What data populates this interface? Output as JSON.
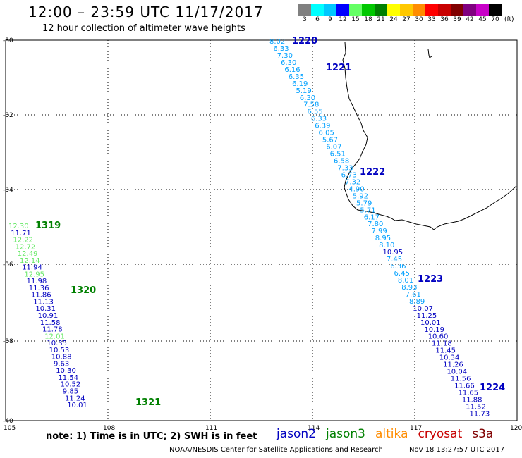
{
  "header": {
    "title": "12:00 – 23:59 UTC 11/17/2017",
    "subtitle": "12 hour collection of altimeter wave heights"
  },
  "color_scale": {
    "labels": [
      "3",
      "6",
      "9",
      "12",
      "15",
      "18",
      "21",
      "24",
      "27",
      "30",
      "33",
      "36",
      "39",
      "42",
      "45",
      "70"
    ],
    "units": "(ft)",
    "colors": [
      "#808080",
      "#00ffff",
      "#00c8ff",
      "#0000ff",
      "#64ff64",
      "#00c800",
      "#008000",
      "#ffff00",
      "#ffc800",
      "#ff8c00",
      "#ff0000",
      "#c80000",
      "#800000",
      "#800080",
      "#c800c8",
      "#000000"
    ]
  },
  "axes": {
    "lat_labels": [
      "-30",
      "-32",
      "-34",
      "-36",
      "-38",
      "-40"
    ],
    "lon_labels": [
      "105",
      "108",
      "111",
      "114",
      "117",
      "120"
    ]
  },
  "tracks": [
    {
      "satellite": "jason2",
      "color": "#0000c0",
      "labels": [
        "1220",
        "1221",
        "1222",
        "1223",
        "1224"
      ],
      "points": [
        {
          "v": "8.02",
          "c": "#00a0ff"
        },
        {
          "v": "6.33",
          "c": "#00a0ff"
        },
        {
          "v": "7.30",
          "c": "#00a0ff"
        },
        {
          "v": "6.30",
          "c": "#00a0ff"
        },
        {
          "v": "6.16",
          "c": "#00a0ff"
        },
        {
          "v": "6.35",
          "c": "#00a0ff"
        },
        {
          "v": "6.19",
          "c": "#00a0ff"
        },
        {
          "v": "5.19",
          "c": "#00a0ff"
        },
        {
          "v": "6.30",
          "c": "#00a0ff"
        },
        {
          "v": "7.58",
          "c": "#00a0ff"
        },
        {
          "v": "6.55",
          "c": "#00a0ff"
        },
        {
          "v": "6.33",
          "c": "#00a0ff"
        },
        {
          "v": "6.39",
          "c": "#00a0ff"
        },
        {
          "v": "6.05",
          "c": "#00a0ff"
        },
        {
          "v": "5.67",
          "c": "#00a0ff"
        },
        {
          "v": "6.07",
          "c": "#00a0ff"
        },
        {
          "v": "6.51",
          "c": "#00a0ff"
        },
        {
          "v": "6.58",
          "c": "#00a0ff"
        },
        {
          "v": "7.33",
          "c": "#00a0ff"
        },
        {
          "v": "6.73",
          "c": "#00a0ff"
        },
        {
          "v": "7.32",
          "c": "#00a0ff"
        },
        {
          "v": "4.90",
          "c": "#00a0ff"
        },
        {
          "v": "5.92",
          "c": "#00a0ff"
        },
        {
          "v": "5.79",
          "c": "#00a0ff"
        },
        {
          "v": "5.71",
          "c": "#00a0ff"
        },
        {
          "v": "6.17",
          "c": "#00a0ff"
        },
        {
          "v": "7.80",
          "c": "#00a0ff"
        },
        {
          "v": "7.99",
          "c": "#00a0ff"
        },
        {
          "v": "8.95",
          "c": "#00a0ff"
        },
        {
          "v": "8.10",
          "c": "#00a0ff"
        },
        {
          "v": "10.95",
          "c": "#0000c0"
        },
        {
          "v": "7.45",
          "c": "#00a0ff"
        },
        {
          "v": "6.36",
          "c": "#00a0ff"
        },
        {
          "v": "6.45",
          "c": "#00a0ff"
        },
        {
          "v": "8.01",
          "c": "#00a0ff"
        },
        {
          "v": "8.93",
          "c": "#00a0ff"
        },
        {
          "v": "7.61",
          "c": "#00a0ff"
        },
        {
          "v": "8.89",
          "c": "#00a0ff"
        },
        {
          "v": "10.07",
          "c": "#0000c0"
        },
        {
          "v": "11.25",
          "c": "#0000c0"
        },
        {
          "v": "10.01",
          "c": "#0000c0"
        },
        {
          "v": "10.19",
          "c": "#0000c0"
        },
        {
          "v": "10.60",
          "c": "#0000c0"
        },
        {
          "v": "11.18",
          "c": "#0000c0"
        },
        {
          "v": "11.45",
          "c": "#0000c0"
        },
        {
          "v": "10.34",
          "c": "#0000c0"
        },
        {
          "v": "11.26",
          "c": "#0000c0"
        },
        {
          "v": "10.04",
          "c": "#0000c0"
        },
        {
          "v": "11.56",
          "c": "#0000c0"
        },
        {
          "v": "11.66",
          "c": "#0000c0"
        },
        {
          "v": "11.65",
          "c": "#0000c0"
        },
        {
          "v": "11.88",
          "c": "#0000c0"
        },
        {
          "v": "11.52",
          "c": "#0000c0"
        },
        {
          "v": "11.73",
          "c": "#0000c0"
        }
      ]
    },
    {
      "satellite": "jason3",
      "color": "#008000",
      "labels": [
        "1319",
        "1320",
        "1321"
      ],
      "points": [
        {
          "v": "12.30",
          "c": "#64e864"
        },
        {
          "v": "11.71",
          "c": "#0000c0"
        },
        {
          "v": "12.22",
          "c": "#64e864"
        },
        {
          "v": "12.72",
          "c": "#64e864"
        },
        {
          "v": "12.49",
          "c": "#64e864"
        },
        {
          "v": "12.14",
          "c": "#64e864"
        },
        {
          "v": "11.94",
          "c": "#0000c0"
        },
        {
          "v": "12.95",
          "c": "#64e864"
        },
        {
          "v": "11.98",
          "c": "#0000c0"
        },
        {
          "v": "11.36",
          "c": "#0000c0"
        },
        {
          "v": "11.86",
          "c": "#0000c0"
        },
        {
          "v": "11.13",
          "c": "#0000c0"
        },
        {
          "v": "10.31",
          "c": "#0000c0"
        },
        {
          "v": "10.91",
          "c": "#0000c0"
        },
        {
          "v": "11.58",
          "c": "#0000c0"
        },
        {
          "v": "11.78",
          "c": "#0000c0"
        },
        {
          "v": "12.01",
          "c": "#64e864"
        },
        {
          "v": "10.35",
          "c": "#0000c0"
        },
        {
          "v": "10.53",
          "c": "#0000c0"
        },
        {
          "v": "10.88",
          "c": "#0000c0"
        },
        {
          "v": "9.63",
          "c": "#0000c0"
        },
        {
          "v": "10.30",
          "c": "#0000c0"
        },
        {
          "v": "11.54",
          "c": "#0000c0"
        },
        {
          "v": "10.52",
          "c": "#0000c0"
        },
        {
          "v": "9.85",
          "c": "#0000c0"
        },
        {
          "v": "11.24",
          "c": "#0000c0"
        },
        {
          "v": "10.01",
          "c": "#0000c0"
        }
      ]
    }
  ],
  "footer": {
    "note": "note: 1) Time is in UTC; 2) SWH is in feet",
    "legend": [
      {
        "name": "jason2",
        "color": "#0000c0"
      },
      {
        "name": "jason3",
        "color": "#008000"
      },
      {
        "name": "altika",
        "color": "#ff8c00"
      },
      {
        "name": "cryosat",
        "color": "#c80000"
      },
      {
        "name": "s3a",
        "color": "#800000"
      }
    ],
    "credit": "NOAA/NESDIS Center for Satellite Applications and Research",
    "timestamp": "Nov 18 13:27:57 UTC 2017"
  }
}
